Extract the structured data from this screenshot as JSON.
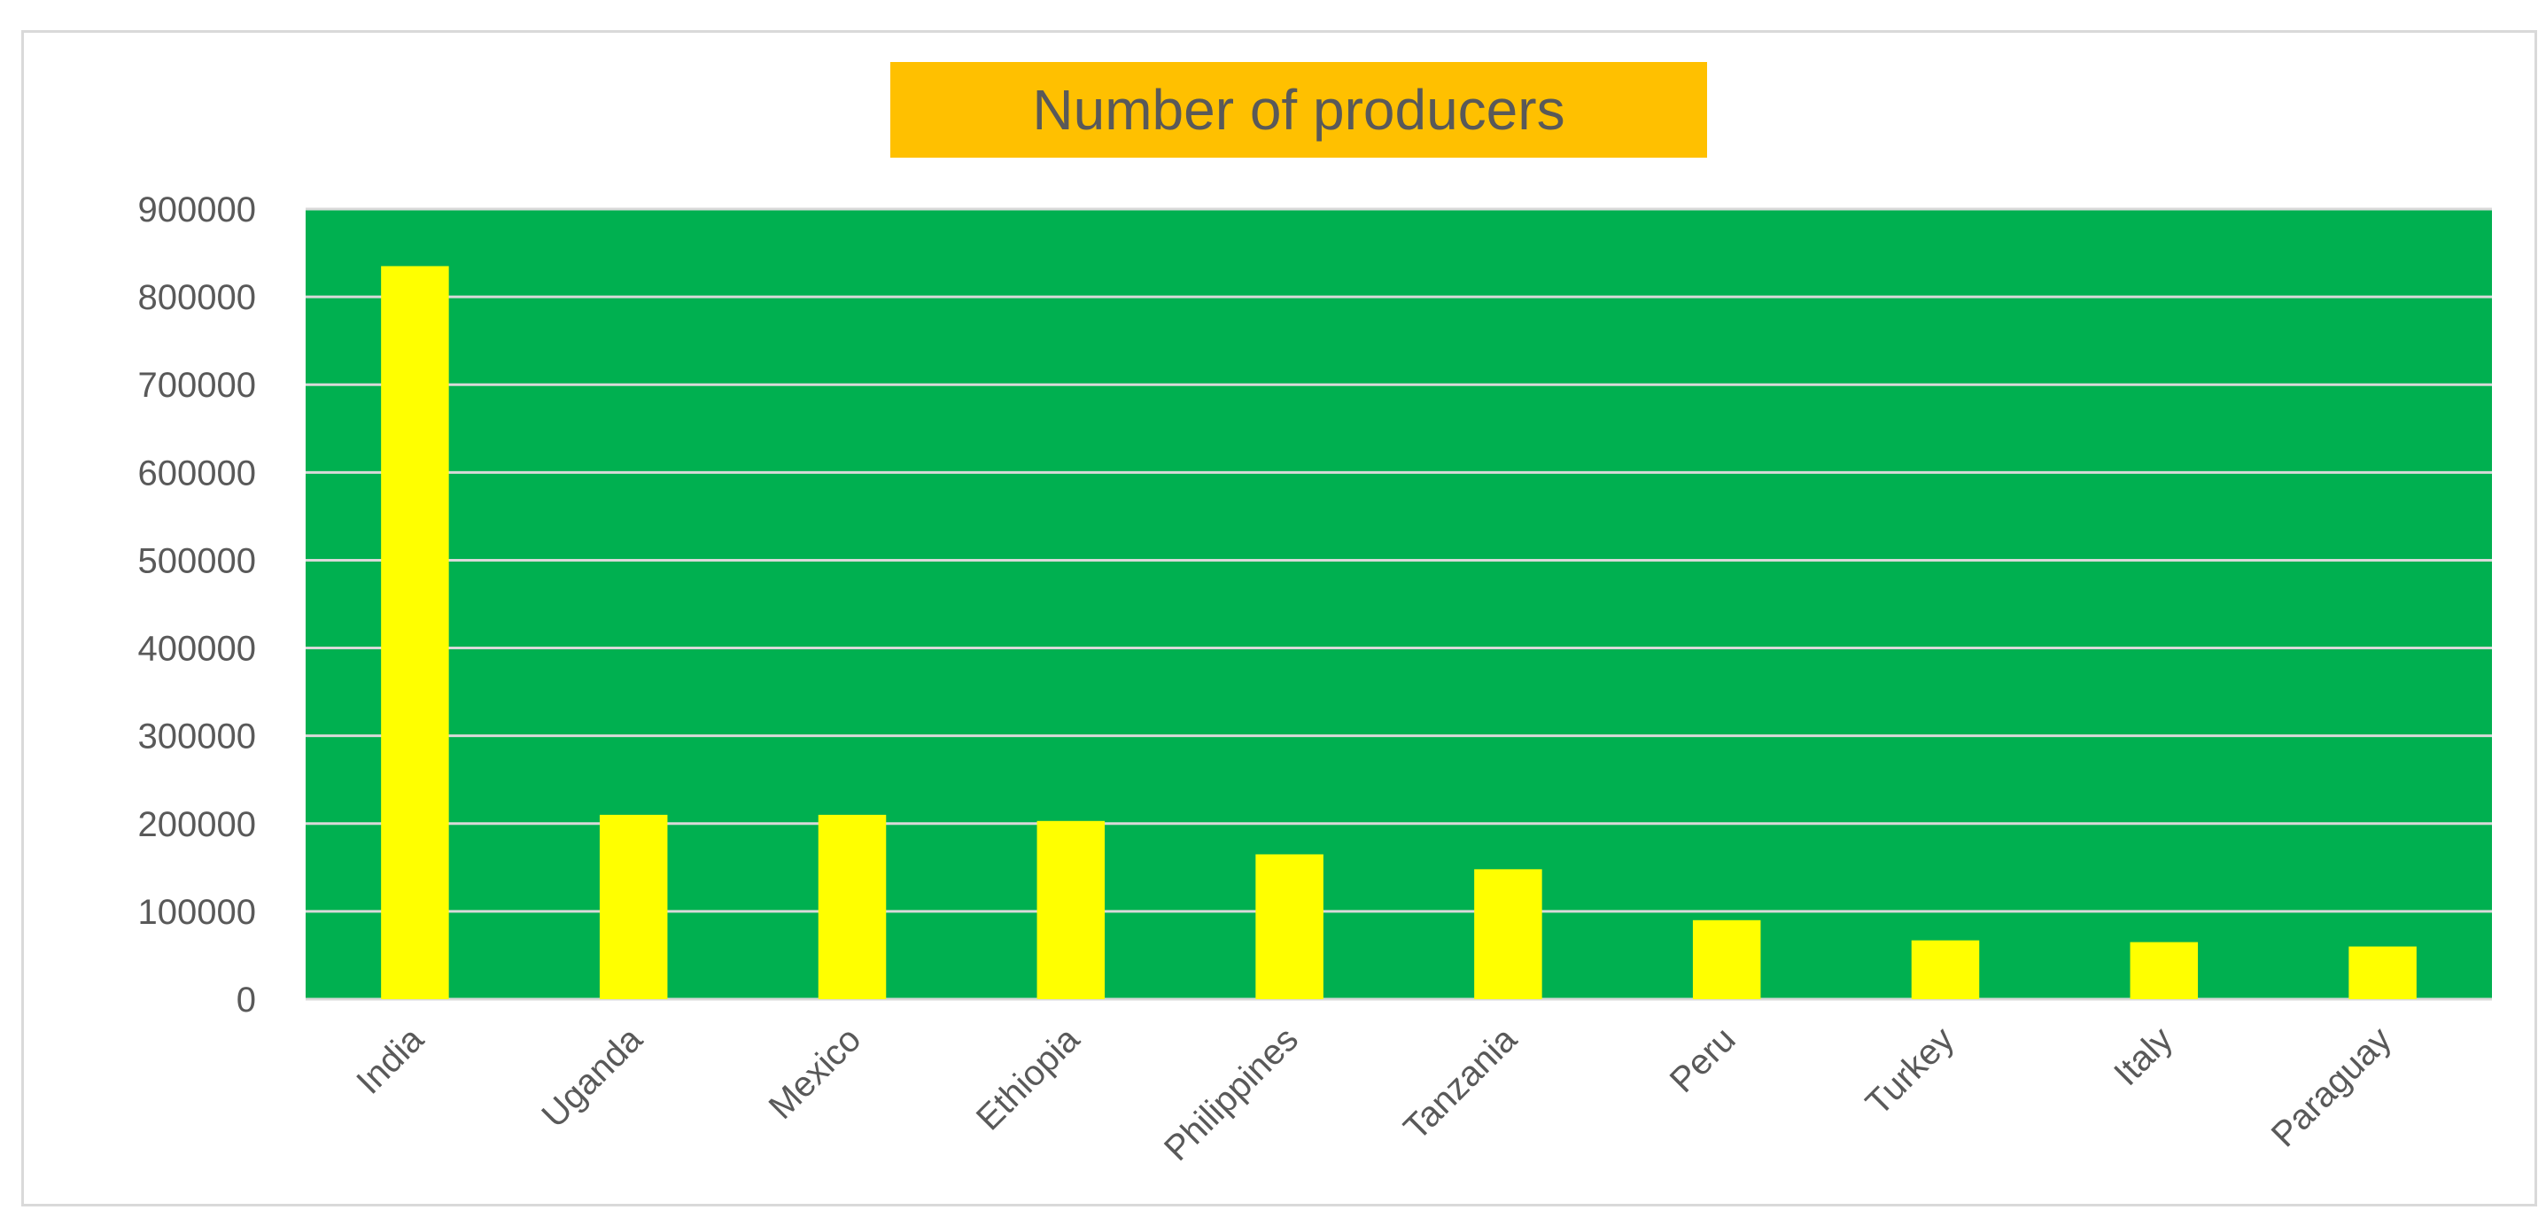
{
  "chart_data": {
    "type": "bar",
    "title": "Number of producers",
    "xlabel": "",
    "ylabel": "",
    "categories": [
      "India",
      "Uganda",
      "Mexico",
      "Ethiopia",
      "Philippines",
      "Tanzania",
      "Peru",
      "Turkey",
      "Italy",
      "Paraguay"
    ],
    "values": [
      835000,
      210000,
      210000,
      203000,
      165000,
      148000,
      90000,
      67000,
      65000,
      60000
    ],
    "ylim": [
      0,
      900000
    ],
    "yticks": [
      "0",
      "100000",
      "200000",
      "300000",
      "400000",
      "500000",
      "600000",
      "700000",
      "800000",
      "900000"
    ],
    "grid": true,
    "legend": "none",
    "colors": {
      "plot_background": "#00b050",
      "bar": "#ffff00",
      "gridline": "#d9d9d9",
      "title_background": "#ffc000",
      "text": "#595959"
    }
  }
}
